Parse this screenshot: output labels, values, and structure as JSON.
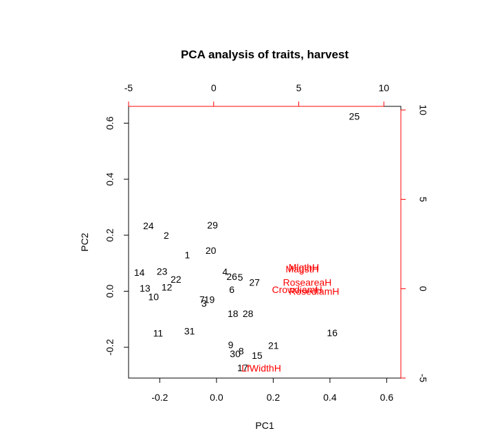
{
  "chart_data": {
    "type": "scatter",
    "subtype": "biplot",
    "title": "PCA analysis of traits, harvest",
    "xlabel": "PC1",
    "ylabel": "PC2",
    "xlim": [
      -0.31,
      0.65
    ],
    "ylim": [
      -0.31,
      0.66
    ],
    "top_xlim": [
      -5,
      11
    ],
    "right_ylim": [
      -5,
      10.2
    ],
    "x_ticks": [
      -0.2,
      0.0,
      0.2,
      0.4,
      0.6
    ],
    "x_tick_labels": [
      "-0.2",
      "0.0",
      "0.2",
      "0.4",
      "0.6"
    ],
    "y_ticks": [
      -0.2,
      0.0,
      0.2,
      0.4,
      0.6
    ],
    "y_tick_labels": [
      "-0.2",
      "0.0",
      "0.2",
      "0.4",
      "0.6"
    ],
    "top_ticks": [
      -5,
      0,
      5,
      10
    ],
    "top_tick_labels": [
      "-5",
      "0",
      "5",
      "10"
    ],
    "right_ticks": [
      -5,
      0,
      5,
      10
    ],
    "right_tick_labels": [
      "-5",
      "0",
      "5",
      "10"
    ],
    "grid": false,
    "point_color": "#000000",
    "loading_color": "#ff0000",
    "points": [
      {
        "label": "1",
        "x": -0.103,
        "y": 0.126
      },
      {
        "label": "2",
        "x": -0.177,
        "y": 0.196
      },
      {
        "label": "3",
        "x": -0.044,
        "y": -0.046
      },
      {
        "label": "4",
        "x": 0.03,
        "y": 0.067
      },
      {
        "label": "5",
        "x": 0.084,
        "y": 0.047
      },
      {
        "label": "6",
        "x": 0.054,
        "y": 0.003
      },
      {
        "label": "7",
        "x": -0.051,
        "y": -0.033
      },
      {
        "label": "8",
        "x": 0.087,
        "y": -0.217
      },
      {
        "label": "9",
        "x": 0.05,
        "y": -0.194
      },
      {
        "label": "10",
        "x": -0.222,
        "y": -0.023
      },
      {
        "label": "11",
        "x": -0.206,
        "y": -0.153
      },
      {
        "label": "12",
        "x": -0.175,
        "y": 0.011
      },
      {
        "label": "13",
        "x": -0.252,
        "y": 0.008
      },
      {
        "label": "14",
        "x": -0.272,
        "y": 0.064
      },
      {
        "label": "15",
        "x": 0.143,
        "y": -0.232
      },
      {
        "label": "16",
        "x": 0.408,
        "y": -0.151
      },
      {
        "label": "17",
        "x": 0.092,
        "y": -0.277
      },
      {
        "label": "18",
        "x": 0.058,
        "y": -0.083
      },
      {
        "label": "19",
        "x": -0.025,
        "y": -0.033
      },
      {
        "label": "20",
        "x": -0.02,
        "y": 0.143
      },
      {
        "label": "21",
        "x": 0.201,
        "y": -0.197
      },
      {
        "label": "22",
        "x": -0.143,
        "y": 0.039
      },
      {
        "label": "23",
        "x": -0.192,
        "y": 0.068
      },
      {
        "label": "24",
        "x": -0.24,
        "y": 0.23
      },
      {
        "label": "25",
        "x": 0.486,
        "y": 0.621
      },
      {
        "label": "26",
        "x": 0.054,
        "y": 0.049
      },
      {
        "label": "27",
        "x": 0.134,
        "y": 0.029
      },
      {
        "label": "28",
        "x": 0.111,
        "y": -0.083
      },
      {
        "label": "29",
        "x": -0.014,
        "y": 0.233
      },
      {
        "label": "30",
        "x": 0.066,
        "y": -0.226
      },
      {
        "label": "31",
        "x": -0.095,
        "y": -0.145
      }
    ],
    "loadings": [
      {
        "label": "MlgthH",
        "x": 5.3,
        "y": 1.15
      },
      {
        "label": "MagstH",
        "x": 5.2,
        "y": 1.05
      },
      {
        "label": "RoseareaH",
        "x": 5.5,
        "y": 0.3
      },
      {
        "label": "CrowdiamH",
        "x": 4.9,
        "y": -0.1
      },
      {
        "label": "RosediamH",
        "x": 5.9,
        "y": -0.2
      },
      {
        "label": "LfWidthH",
        "x": 2.8,
        "y": -4.5
      }
    ]
  }
}
